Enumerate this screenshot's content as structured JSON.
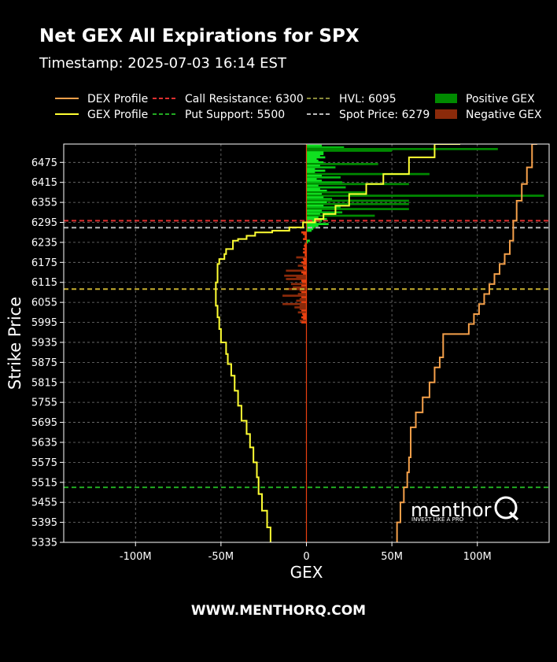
{
  "title": "Net GEX All Expirations for SPX",
  "subtitle": "Timestamp: 2025-07-03 16:14 EST",
  "footer": "WWW.MENTHORQ.COM",
  "watermark": {
    "brand": "menthor",
    "tagline": "INVEST LIKE A PRO"
  },
  "chart_data": {
    "type": "bar",
    "orientation": "horizontal",
    "xlabel": "GEX",
    "ylabel": "Strike Price",
    "xlim": [
      -142000000,
      142000000
    ],
    "ylim": [
      5335,
      6530
    ],
    "xticks": [
      {
        "value": -100000000,
        "label": "-100M"
      },
      {
        "value": -50000000,
        "label": "-50M"
      },
      {
        "value": 0,
        "label": "0"
      },
      {
        "value": 50000000,
        "label": "50M"
      },
      {
        "value": 100000000,
        "label": "100M"
      }
    ],
    "yticks": [
      5335,
      5395,
      5455,
      5515,
      5575,
      5635,
      5695,
      5755,
      5815,
      5875,
      5935,
      5995,
      6055,
      6115,
      6175,
      6235,
      6295,
      6355,
      6415,
      6475
    ],
    "grid": true,
    "legend_position": "top",
    "legend": [
      {
        "label": "DEX Profile",
        "style": "line",
        "color": "#f5a04a"
      },
      {
        "label": "GEX Profile",
        "style": "line",
        "color": "#ffff33"
      },
      {
        "label": "Call Resistance: 6300",
        "style": "dashed",
        "color": "#e03030"
      },
      {
        "label": "Put Support: 5500",
        "style": "dashed",
        "color": "#22aa22"
      },
      {
        "label": "HVL: 6095",
        "style": "dashed",
        "color": "#8a8a3a"
      },
      {
        "label": "Spot Price: 6279",
        "style": "dashed",
        "color": "#bbbbbb"
      },
      {
        "label": "Positive GEX",
        "style": "box",
        "color": "#008a00"
      },
      {
        "label": "Negative GEX",
        "style": "box",
        "color": "#8b2a0a"
      }
    ],
    "levels": [
      {
        "name": "Call Resistance",
        "value": 6300,
        "color": "#e03030"
      },
      {
        "name": "Spot Price",
        "value": 6279,
        "color": "#bbbbbb"
      },
      {
        "name": "HVL",
        "value": 6095,
        "color": "#c8b030"
      },
      {
        "name": "Put Support",
        "value": 5500,
        "color": "#22aa22"
      }
    ],
    "bars": [
      {
        "strike": 6525,
        "value": 9000000
      },
      {
        "strike": 6520,
        "value": 22000000
      },
      {
        "strike": 6515,
        "value": 112000000
      },
      {
        "strike": 6510,
        "value": 50000000
      },
      {
        "strike": 6505,
        "value": 10000000
      },
      {
        "strike": 6500,
        "value": 10000000
      },
      {
        "strike": 6495,
        "value": 8000000
      },
      {
        "strike": 6490,
        "value": 11000000
      },
      {
        "strike": 6485,
        "value": 6000000
      },
      {
        "strike": 6480,
        "value": 7000000
      },
      {
        "strike": 6475,
        "value": 10000000
      },
      {
        "strike": 6470,
        "value": 42000000
      },
      {
        "strike": 6465,
        "value": 8000000
      },
      {
        "strike": 6460,
        "value": 17000000
      },
      {
        "strike": 6455,
        "value": 5000000
      },
      {
        "strike": 6450,
        "value": 11000000
      },
      {
        "strike": 6445,
        "value": 5000000
      },
      {
        "strike": 6440,
        "value": 72000000
      },
      {
        "strike": 6435,
        "value": 9000000
      },
      {
        "strike": 6430,
        "value": 20000000
      },
      {
        "strike": 6425,
        "value": 6000000
      },
      {
        "strike": 6420,
        "value": 9000000
      },
      {
        "strike": 6415,
        "value": 21000000
      },
      {
        "strike": 6410,
        "value": 60000000
      },
      {
        "strike": 6405,
        "value": 7000000
      },
      {
        "strike": 6400,
        "value": 23000000
      },
      {
        "strike": 6395,
        "value": 8000000
      },
      {
        "strike": 6390,
        "value": 12000000
      },
      {
        "strike": 6385,
        "value": 35000000
      },
      {
        "strike": 6380,
        "value": 9000000
      },
      {
        "strike": 6375,
        "value": 139000000
      },
      {
        "strike": 6370,
        "value": 10000000
      },
      {
        "strike": 6365,
        "value": 15000000
      },
      {
        "strike": 6360,
        "value": 60000000
      },
      {
        "strike": 6355,
        "value": 12000000
      },
      {
        "strike": 6350,
        "value": 60000000
      },
      {
        "strike": 6345,
        "value": 10000000
      },
      {
        "strike": 6340,
        "value": 20000000
      },
      {
        "strike": 6335,
        "value": 60000000
      },
      {
        "strike": 6330,
        "value": 9000000
      },
      {
        "strike": 6325,
        "value": 21000000
      },
      {
        "strike": 6320,
        "value": 8000000
      },
      {
        "strike": 6315,
        "value": 40000000
      },
      {
        "strike": 6310,
        "value": 7000000
      },
      {
        "strike": 6305,
        "value": 12000000
      },
      {
        "strike": 6300,
        "value": 9000000
      },
      {
        "strike": 6295,
        "value": 6000000
      },
      {
        "strike": 6290,
        "value": 13000000
      },
      {
        "strike": 6285,
        "value": 7000000
      },
      {
        "strike": 6280,
        "value": 5000000
      },
      {
        "strike": 6275,
        "value": 4000000
      },
      {
        "strike": 6270,
        "value": 3000000
      },
      {
        "strike": 6265,
        "value": -3000000
      },
      {
        "strike": 6260,
        "value": -2000000
      },
      {
        "strike": 6255,
        "value": -1000000
      },
      {
        "strike": 6250,
        "value": -1000000
      },
      {
        "strike": 6245,
        "value": -2000000
      },
      {
        "strike": 6240,
        "value": 2000000
      },
      {
        "strike": 6235,
        "value": 1000000
      },
      {
        "strike": 6230,
        "value": -1000000
      },
      {
        "strike": 6225,
        "value": -1500000
      },
      {
        "strike": 6220,
        "value": -1000000
      },
      {
        "strike": 6215,
        "value": -2000000
      },
      {
        "strike": 6210,
        "value": -1000000
      },
      {
        "strike": 6205,
        "value": -2000000
      },
      {
        "strike": 6200,
        "value": -1000000
      },
      {
        "strike": 6195,
        "value": -1000000
      },
      {
        "strike": 6190,
        "value": -6000000
      },
      {
        "strike": 6185,
        "value": -2000000
      },
      {
        "strike": 6180,
        "value": -1500000
      },
      {
        "strike": 6175,
        "value": -3000000
      },
      {
        "strike": 6170,
        "value": -2000000
      },
      {
        "strike": 6165,
        "value": -5000000
      },
      {
        "strike": 6160,
        "value": -2000000
      },
      {
        "strike": 6155,
        "value": -1500000
      },
      {
        "strike": 6150,
        "value": -12000000
      },
      {
        "strike": 6145,
        "value": -3000000
      },
      {
        "strike": 6140,
        "value": -2000000
      },
      {
        "strike": 6135,
        "value": -13000000
      },
      {
        "strike": 6130,
        "value": -6000000
      },
      {
        "strike": 6125,
        "value": -12000000
      },
      {
        "strike": 6120,
        "value": -3000000
      },
      {
        "strike": 6115,
        "value": -2500000
      },
      {
        "strike": 6110,
        "value": -9000000
      },
      {
        "strike": 6105,
        "value": -3000000
      },
      {
        "strike": 6100,
        "value": -8000000
      },
      {
        "strike": 6095,
        "value": -12000000
      },
      {
        "strike": 6090,
        "value": -4000000
      },
      {
        "strike": 6085,
        "value": -3000000
      },
      {
        "strike": 6080,
        "value": -5000000
      },
      {
        "strike": 6075,
        "value": -14000000
      },
      {
        "strike": 6070,
        "value": -3000000
      },
      {
        "strike": 6065,
        "value": -4000000
      },
      {
        "strike": 6060,
        "value": -6000000
      },
      {
        "strike": 6055,
        "value": -3000000
      },
      {
        "strike": 6050,
        "value": -14000000
      },
      {
        "strike": 6045,
        "value": -4000000
      },
      {
        "strike": 6040,
        "value": -7000000
      },
      {
        "strike": 6035,
        "value": -4000000
      },
      {
        "strike": 6030,
        "value": -3000000
      },
      {
        "strike": 6025,
        "value": -5000000
      },
      {
        "strike": 6020,
        "value": -2500000
      },
      {
        "strike": 6015,
        "value": -2000000
      },
      {
        "strike": 6010,
        "value": -3000000
      },
      {
        "strike": 6005,
        "value": -2000000
      },
      {
        "strike": 6000,
        "value": -4000000
      },
      {
        "strike": 5995,
        "value": -3000000
      }
    ],
    "dex_profile": {
      "x": [
        53000000,
        55000000,
        57000000,
        59000000,
        60000000,
        61000000,
        61000000,
        64000000,
        68000000,
        72000000,
        75000000,
        78000000,
        80000000,
        95000000,
        98000000,
        101000000,
        104000000,
        107000000,
        110000000,
        113000000,
        116000000,
        119000000,
        121000000,
        123000000,
        126000000,
        129000000,
        132000000,
        135000000
      ],
      "y": [
        5335,
        5395,
        5455,
        5500,
        5545,
        5590,
        5635,
        5680,
        5725,
        5770,
        5815,
        5860,
        5890,
        5960,
        5990,
        6020,
        6050,
        6080,
        6110,
        6140,
        6170,
        6200,
        6240,
        6300,
        6360,
        6410,
        6460,
        6530
      ]
    },
    "gex_profile": {
      "x": [
        -21000000,
        -23000000,
        -26000000,
        -28000000,
        -29000000,
        -31000000,
        -33000000,
        -35000000,
        -38000000,
        -40000000,
        -42000000,
        -44000000,
        -46000000,
        -47000000,
        -50000000,
        -51000000,
        -52000000,
        -53000000,
        -53000000,
        -52000000,
        -52000000,
        -51000000,
        -48000000,
        -47000000,
        -43000000,
        -40000000,
        -35000000,
        -30000000,
        -20000000,
        -10000000,
        -2000000,
        5000000,
        10000000,
        17000000,
        25000000,
        35000000,
        45000000,
        60000000,
        75000000,
        90000000
      ],
      "y": [
        5335,
        5380,
        5430,
        5480,
        5530,
        5575,
        5620,
        5660,
        5700,
        5745,
        5790,
        5835,
        5870,
        5900,
        5935,
        5975,
        6010,
        6045,
        6085,
        6115,
        6140,
        6170,
        6185,
        6200,
        6215,
        6240,
        6245,
        6255,
        6265,
        6270,
        6280,
        6295,
        6305,
        6320,
        6345,
        6380,
        6410,
        6440,
        6490,
        6530
      ]
    }
  }
}
